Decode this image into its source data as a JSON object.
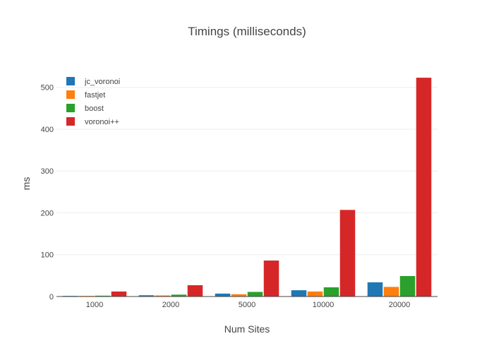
{
  "chart_data": {
    "type": "bar",
    "title": "Timings (milliseconds)",
    "xlabel": "Num Sites",
    "ylabel": "ms",
    "categories": [
      "1000",
      "2000",
      "5000",
      "10000",
      "20000"
    ],
    "ylim": [
      0,
      540
    ],
    "yticks": [
      0,
      100,
      200,
      300,
      400,
      500
    ],
    "grid": true,
    "legend_position": "top-left",
    "series": [
      {
        "name": "jc_voronoi",
        "color": "#1f77b4",
        "values": [
          1.5,
          3,
          7,
          15,
          34
        ]
      },
      {
        "name": "fastjet",
        "color": "#ff7f0e",
        "values": [
          1.5,
          2.5,
          5.5,
          12,
          23
        ]
      },
      {
        "name": "boost",
        "color": "#2ca02c",
        "values": [
          2,
          4.5,
          11,
          22,
          49
        ]
      },
      {
        "name": "voronoi++",
        "color": "#d62728",
        "values": [
          12,
          27,
          86,
          207,
          523
        ]
      }
    ]
  }
}
